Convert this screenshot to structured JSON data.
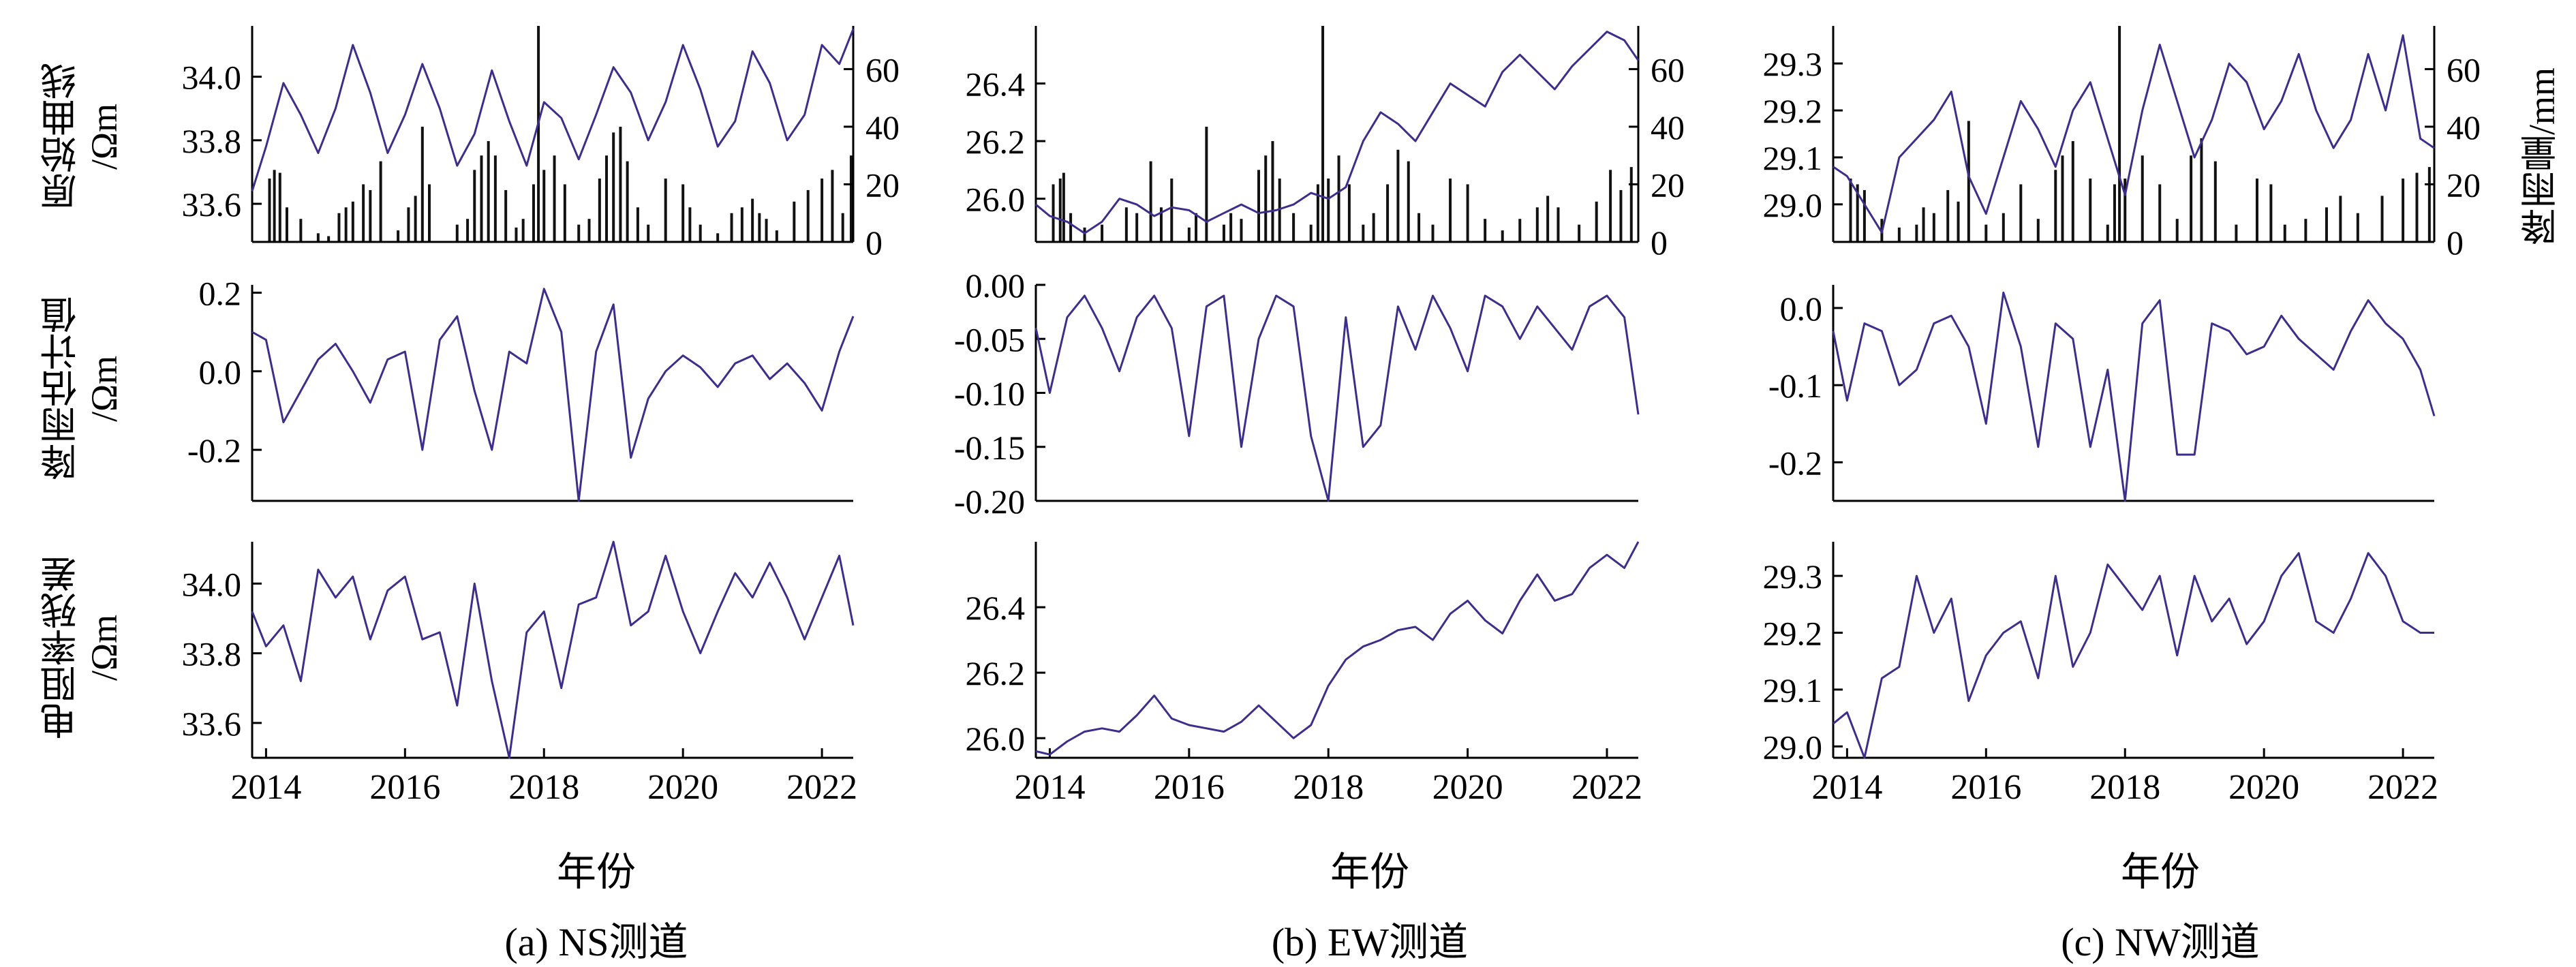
{
  "labels": {
    "row1_ylabel": "原始曲线",
    "row2_ylabel": "降雨估计值",
    "row3_ylabel": "电阻率残差",
    "unit": "/Ωm",
    "rain_axis_label": "降雨量/mm",
    "x_title": "年份"
  },
  "colors": {
    "line": "#3c2f8c",
    "bar": "#111111",
    "axis": "#000000"
  },
  "panels": [
    {
      "id": "ns",
      "caption": "(a) NS测道"
    },
    {
      "id": "ew",
      "caption": "(b) EW测道"
    },
    {
      "id": "nw",
      "caption": "(c) NW测道"
    }
  ],
  "chart_data": [
    {
      "type": "line",
      "panel": "ns",
      "row": "raw",
      "title": "",
      "ylabel": "原始曲线 /Ωm",
      "xlim": [
        2013.8,
        2022.45
      ],
      "ylim": [
        33.48,
        34.16
      ],
      "yticks": [
        33.6,
        33.8,
        34.0
      ],
      "xticks": [
        2014,
        2016,
        2018,
        2020,
        2022
      ],
      "x": [
        2013.8,
        2014.0,
        2014.25,
        2014.5,
        2014.75,
        2015.0,
        2015.25,
        2015.5,
        2015.75,
        2016.0,
        2016.25,
        2016.5,
        2016.75,
        2017.0,
        2017.25,
        2017.5,
        2017.75,
        2018.0,
        2018.25,
        2018.5,
        2018.75,
        2019.0,
        2019.25,
        2019.5,
        2019.75,
        2020.0,
        2020.25,
        2020.5,
        2020.75,
        2021.0,
        2021.25,
        2021.5,
        2021.75,
        2022.0,
        2022.25,
        2022.45
      ],
      "y": [
        33.64,
        33.78,
        33.98,
        33.88,
        33.76,
        33.9,
        34.1,
        33.95,
        33.76,
        33.88,
        34.04,
        33.9,
        33.72,
        33.82,
        34.02,
        33.86,
        33.72,
        33.92,
        33.87,
        33.74,
        33.88,
        34.03,
        33.95,
        33.8,
        33.92,
        34.1,
        33.96,
        33.78,
        33.86,
        34.08,
        33.98,
        33.8,
        33.88,
        34.1,
        34.04,
        34.15
      ],
      "rain_series": {
        "ylim": [
          0,
          75
        ],
        "yticks": [
          0,
          20,
          40,
          60
        ],
        "y2label": "降雨量/mm",
        "x": [
          2014.05,
          2014.12,
          2014.2,
          2014.3,
          2014.5,
          2014.75,
          2014.9,
          2015.05,
          2015.15,
          2015.25,
          2015.4,
          2015.5,
          2015.65,
          2015.9,
          2016.05,
          2016.15,
          2016.25,
          2016.35,
          2016.75,
          2016.9,
          2017.0,
          2017.1,
          2017.2,
          2017.3,
          2017.45,
          2017.6,
          2017.7,
          2017.85,
          2017.92,
          2018.0,
          2018.15,
          2018.3,
          2018.5,
          2018.65,
          2018.8,
          2018.9,
          2019.0,
          2019.1,
          2019.2,
          2019.35,
          2019.5,
          2019.75,
          2020.0,
          2020.1,
          2020.25,
          2020.5,
          2020.7,
          2020.85,
          2021.0,
          2021.1,
          2021.2,
          2021.35,
          2021.6,
          2021.8,
          2022.0,
          2022.15,
          2022.3,
          2022.42
        ],
        "values": [
          22,
          25,
          24,
          12,
          8,
          3,
          2,
          10,
          12,
          14,
          20,
          18,
          28,
          4,
          12,
          16,
          40,
          20,
          6,
          8,
          25,
          30,
          35,
          30,
          18,
          5,
          8,
          20,
          75,
          25,
          30,
          20,
          6,
          8,
          22,
          30,
          38,
          40,
          28,
          12,
          6,
          22,
          20,
          12,
          6,
          3,
          10,
          12,
          15,
          10,
          8,
          4,
          14,
          18,
          22,
          25,
          10,
          30
        ]
      }
    },
    {
      "type": "line",
      "panel": "ns",
      "row": "rain_estimate",
      "ylabel": "降雨估计值 /Ωm",
      "xlim": [
        2013.8,
        2022.45
      ],
      "ylim": [
        -0.33,
        0.22
      ],
      "yticks": [
        -0.2,
        0.0,
        0.2
      ],
      "x": [
        2013.8,
        2014.0,
        2014.25,
        2014.5,
        2014.75,
        2015.0,
        2015.25,
        2015.5,
        2015.75,
        2016.0,
        2016.25,
        2016.5,
        2016.75,
        2017.0,
        2017.25,
        2017.5,
        2017.75,
        2018.0,
        2018.25,
        2018.5,
        2018.75,
        2019.0,
        2019.25,
        2019.5,
        2019.75,
        2020.0,
        2020.25,
        2020.5,
        2020.75,
        2021.0,
        2021.25,
        2021.5,
        2021.75,
        2022.0,
        2022.25,
        2022.45
      ],
      "y": [
        0.1,
        0.08,
        -0.13,
        -0.05,
        0.03,
        0.07,
        0.0,
        -0.08,
        0.03,
        0.05,
        -0.2,
        0.08,
        0.14,
        -0.05,
        -0.2,
        0.05,
        0.02,
        0.21,
        0.1,
        -0.33,
        0.05,
        0.17,
        -0.22,
        -0.07,
        0.0,
        0.04,
        0.01,
        -0.04,
        0.02,
        0.04,
        -0.02,
        0.02,
        -0.03,
        -0.1,
        0.05,
        0.14
      ]
    },
    {
      "type": "line",
      "panel": "ns",
      "row": "residual",
      "ylabel": "电阻率残差 /Ωm",
      "xlim": [
        2013.8,
        2022.45
      ],
      "ylim": [
        33.5,
        34.12
      ],
      "yticks": [
        33.6,
        33.8,
        34.0
      ],
      "x": [
        2013.8,
        2014.0,
        2014.25,
        2014.5,
        2014.75,
        2015.0,
        2015.25,
        2015.5,
        2015.75,
        2016.0,
        2016.25,
        2016.5,
        2016.75,
        2017.0,
        2017.25,
        2017.5,
        2017.75,
        2018.0,
        2018.25,
        2018.5,
        2018.75,
        2019.0,
        2019.25,
        2019.5,
        2019.75,
        2020.0,
        2020.25,
        2020.5,
        2020.75,
        2021.0,
        2021.25,
        2021.5,
        2021.75,
        2022.0,
        2022.25,
        2022.45
      ],
      "y": [
        33.92,
        33.82,
        33.88,
        33.72,
        34.04,
        33.96,
        34.02,
        33.84,
        33.98,
        34.02,
        33.84,
        33.86,
        33.65,
        34.0,
        33.72,
        33.5,
        33.86,
        33.92,
        33.7,
        33.94,
        33.96,
        34.12,
        33.88,
        33.92,
        34.08,
        33.92,
        33.8,
        33.92,
        34.03,
        33.96,
        34.06,
        33.96,
        33.84,
        33.96,
        34.08,
        33.88
      ]
    },
    {
      "type": "line",
      "panel": "ew",
      "row": "raw",
      "ylabel": "原始曲线 /Ωm",
      "xlim": [
        2013.8,
        2022.45
      ],
      "ylim": [
        25.85,
        26.6
      ],
      "yticks": [
        26.0,
        26.2,
        26.4
      ],
      "xticks": [
        2014,
        2016,
        2018,
        2020,
        2022
      ],
      "x": [
        2013.8,
        2014.0,
        2014.25,
        2014.5,
        2014.75,
        2015.0,
        2015.25,
        2015.5,
        2015.75,
        2016.0,
        2016.25,
        2016.5,
        2016.75,
        2017.0,
        2017.25,
        2017.5,
        2017.75,
        2018.0,
        2018.25,
        2018.5,
        2018.75,
        2019.0,
        2019.25,
        2019.5,
        2019.75,
        2020.0,
        2020.25,
        2020.5,
        2020.75,
        2021.0,
        2021.25,
        2021.5,
        2021.75,
        2022.0,
        2022.25,
        2022.45
      ],
      "y": [
        25.98,
        25.94,
        25.92,
        25.88,
        25.92,
        26.0,
        25.98,
        25.94,
        25.97,
        25.96,
        25.92,
        25.95,
        25.98,
        25.95,
        25.96,
        25.98,
        26.02,
        26.0,
        26.04,
        26.2,
        26.3,
        26.26,
        26.2,
        26.3,
        26.4,
        26.36,
        26.32,
        26.44,
        26.5,
        26.44,
        26.38,
        26.46,
        26.52,
        26.58,
        26.55,
        26.48
      ],
      "rain_series": {
        "ylim": [
          0,
          75
        ],
        "yticks": [
          0,
          20,
          40,
          60
        ],
        "x": [
          2014.05,
          2014.15,
          2014.2,
          2014.3,
          2014.5,
          2014.75,
          2015.1,
          2015.25,
          2015.45,
          2015.6,
          2015.75,
          2016.0,
          2016.1,
          2016.25,
          2016.5,
          2016.6,
          2016.75,
          2017.0,
          2017.1,
          2017.2,
          2017.3,
          2017.5,
          2017.75,
          2017.85,
          2017.92,
          2018.0,
          2018.15,
          2018.3,
          2018.5,
          2018.65,
          2018.85,
          2019.0,
          2019.15,
          2019.3,
          2019.5,
          2019.75,
          2020.0,
          2020.25,
          2020.5,
          2020.75,
          2021.0,
          2021.15,
          2021.3,
          2021.6,
          2021.85,
          2022.05,
          2022.2,
          2022.35
        ],
        "values": [
          20,
          22,
          24,
          10,
          5,
          6,
          12,
          10,
          28,
          12,
          22,
          5,
          10,
          40,
          6,
          10,
          8,
          25,
          30,
          35,
          22,
          10,
          6,
          20,
          75,
          22,
          30,
          20,
          6,
          10,
          20,
          32,
          28,
          10,
          6,
          22,
          20,
          8,
          4,
          8,
          12,
          16,
          12,
          6,
          14,
          25,
          18,
          26
        ]
      }
    },
    {
      "type": "line",
      "panel": "ew",
      "row": "rain_estimate",
      "ylabel": "降雨估计值 /Ωm",
      "xlim": [
        2013.8,
        2022.45
      ],
      "ylim": [
        -0.2,
        0.0
      ],
      "yticks": [
        -0.2,
        -0.15,
        -0.1,
        -0.05,
        0.0
      ],
      "x": [
        2013.8,
        2014.0,
        2014.25,
        2014.5,
        2014.75,
        2015.0,
        2015.25,
        2015.5,
        2015.75,
        2016.0,
        2016.25,
        2016.5,
        2016.75,
        2017.0,
        2017.25,
        2017.5,
        2017.75,
        2018.0,
        2018.25,
        2018.5,
        2018.75,
        2019.0,
        2019.25,
        2019.5,
        2019.75,
        2020.0,
        2020.25,
        2020.5,
        2020.75,
        2021.0,
        2021.25,
        2021.5,
        2021.75,
        2022.0,
        2022.25,
        2022.45
      ],
      "y": [
        -0.04,
        -0.1,
        -0.03,
        -0.01,
        -0.04,
        -0.08,
        -0.03,
        -0.01,
        -0.04,
        -0.14,
        -0.02,
        -0.01,
        -0.15,
        -0.05,
        -0.01,
        -0.02,
        -0.14,
        -0.2,
        -0.03,
        -0.15,
        -0.13,
        -0.02,
        -0.06,
        -0.01,
        -0.04,
        -0.08,
        -0.01,
        -0.02,
        -0.05,
        -0.02,
        -0.04,
        -0.06,
        -0.02,
        -0.01,
        -0.03,
        -0.12
      ]
    },
    {
      "type": "line",
      "panel": "ew",
      "row": "residual",
      "ylabel": "电阻率残差 /Ωm",
      "xlim": [
        2013.8,
        2022.45
      ],
      "ylim": [
        25.94,
        26.6
      ],
      "yticks": [
        26.0,
        26.2,
        26.4
      ],
      "x": [
        2013.8,
        2014.0,
        2014.25,
        2014.5,
        2014.75,
        2015.0,
        2015.25,
        2015.5,
        2015.75,
        2016.0,
        2016.25,
        2016.5,
        2016.75,
        2017.0,
        2017.25,
        2017.5,
        2017.75,
        2018.0,
        2018.25,
        2018.5,
        2018.75,
        2019.0,
        2019.25,
        2019.5,
        2019.75,
        2020.0,
        2020.25,
        2020.5,
        2020.75,
        2021.0,
        2021.25,
        2021.5,
        2021.75,
        2022.0,
        2022.25,
        2022.45
      ],
      "y": [
        25.96,
        25.95,
        25.99,
        26.02,
        26.03,
        26.02,
        26.07,
        26.13,
        26.06,
        26.04,
        26.03,
        26.02,
        26.05,
        26.1,
        26.05,
        26.0,
        26.04,
        26.16,
        26.24,
        26.28,
        26.3,
        26.33,
        26.34,
        26.3,
        26.38,
        26.42,
        26.36,
        26.32,
        26.42,
        26.5,
        26.42,
        26.44,
        26.52,
        26.56,
        26.52,
        26.6
      ]
    },
    {
      "type": "line",
      "panel": "nw",
      "row": "raw",
      "ylabel": "原始曲线 /Ωm",
      "xlim": [
        2013.8,
        2022.45
      ],
      "ylim": [
        28.92,
        29.38
      ],
      "yticks": [
        29.0,
        29.1,
        29.2,
        29.3
      ],
      "xticks": [
        2014,
        2016,
        2018,
        2020,
        2022
      ],
      "x": [
        2013.8,
        2014.0,
        2014.25,
        2014.5,
        2014.75,
        2015.0,
        2015.25,
        2015.5,
        2015.75,
        2016.0,
        2016.25,
        2016.5,
        2016.75,
        2017.0,
        2017.25,
        2017.5,
        2017.75,
        2018.0,
        2018.25,
        2018.5,
        2018.75,
        2019.0,
        2019.25,
        2019.5,
        2019.75,
        2020.0,
        2020.25,
        2020.5,
        2020.75,
        2021.0,
        2021.25,
        2021.5,
        2021.75,
        2022.0,
        2022.25,
        2022.45
      ],
      "y": [
        29.08,
        29.06,
        29.0,
        28.94,
        29.1,
        29.14,
        29.18,
        29.24,
        29.06,
        28.98,
        29.1,
        29.22,
        29.16,
        29.08,
        29.2,
        29.26,
        29.14,
        29.02,
        29.2,
        29.34,
        29.22,
        29.1,
        29.18,
        29.3,
        29.26,
        29.16,
        29.22,
        29.32,
        29.2,
        29.12,
        29.18,
        29.32,
        29.2,
        29.36,
        29.14,
        29.12
      ],
      "rain_series": {
        "ylim": [
          0,
          75
        ],
        "yticks": [
          0,
          20,
          40,
          60
        ],
        "y2label": "降雨量/mm",
        "x": [
          2014.05,
          2014.15,
          2014.25,
          2014.5,
          2014.75,
          2015.0,
          2015.1,
          2015.25,
          2015.45,
          2015.6,
          2015.75,
          2016.0,
          2016.25,
          2016.5,
          2016.75,
          2017.0,
          2017.1,
          2017.25,
          2017.5,
          2017.75,
          2017.85,
          2017.92,
          2018.0,
          2018.25,
          2018.5,
          2018.75,
          2018.95,
          2019.1,
          2019.3,
          2019.6,
          2019.9,
          2020.1,
          2020.3,
          2020.6,
          2020.9,
          2021.1,
          2021.35,
          2021.7,
          2022.0,
          2022.2,
          2022.38
        ],
        "values": [
          22,
          20,
          18,
          8,
          5,
          6,
          12,
          10,
          18,
          14,
          42,
          6,
          10,
          20,
          8,
          25,
          30,
          35,
          22,
          6,
          20,
          75,
          22,
          30,
          20,
          8,
          30,
          36,
          28,
          6,
          22,
          20,
          6,
          8,
          12,
          16,
          10,
          16,
          22,
          24,
          26
        ]
      }
    },
    {
      "type": "line",
      "panel": "nw",
      "row": "rain_estimate",
      "ylabel": "降雨估计值 /Ωm",
      "xlim": [
        2013.8,
        2022.45
      ],
      "ylim": [
        -0.25,
        0.03
      ],
      "yticks": [
        -0.2,
        -0.1,
        0.0
      ],
      "x": [
        2013.8,
        2014.0,
        2014.25,
        2014.5,
        2014.75,
        2015.0,
        2015.25,
        2015.5,
        2015.75,
        2016.0,
        2016.25,
        2016.5,
        2016.75,
        2017.0,
        2017.25,
        2017.5,
        2017.75,
        2018.0,
        2018.25,
        2018.5,
        2018.75,
        2019.0,
        2019.25,
        2019.5,
        2019.75,
        2020.0,
        2020.25,
        2020.5,
        2020.75,
        2021.0,
        2021.25,
        2021.5,
        2021.75,
        2022.0,
        2022.25,
        2022.45
      ],
      "y": [
        -0.03,
        -0.12,
        -0.02,
        -0.03,
        -0.1,
        -0.08,
        -0.02,
        -0.01,
        -0.05,
        -0.15,
        0.02,
        -0.05,
        -0.18,
        -0.02,
        -0.04,
        -0.18,
        -0.08,
        -0.25,
        -0.02,
        0.01,
        -0.19,
        -0.19,
        -0.02,
        -0.03,
        -0.06,
        -0.05,
        -0.01,
        -0.04,
        -0.06,
        -0.08,
        -0.03,
        0.01,
        -0.02,
        -0.04,
        -0.08,
        -0.14
      ]
    },
    {
      "type": "line",
      "panel": "nw",
      "row": "residual",
      "ylabel": "电阻率残差 /Ωm",
      "xlim": [
        2013.8,
        2022.45
      ],
      "ylim": [
        28.98,
        29.36
      ],
      "yticks": [
        29.0,
        29.1,
        29.2,
        29.3
      ],
      "x": [
        2013.8,
        2014.0,
        2014.25,
        2014.5,
        2014.75,
        2015.0,
        2015.25,
        2015.5,
        2015.75,
        2016.0,
        2016.25,
        2016.5,
        2016.75,
        2017.0,
        2017.25,
        2017.5,
        2017.75,
        2018.0,
        2018.25,
        2018.5,
        2018.75,
        2019.0,
        2019.25,
        2019.5,
        2019.75,
        2020.0,
        2020.25,
        2020.5,
        2020.75,
        2021.0,
        2021.25,
        2021.5,
        2021.75,
        2022.0,
        2022.25,
        2022.45
      ],
      "y": [
        29.04,
        29.06,
        28.98,
        29.12,
        29.14,
        29.3,
        29.2,
        29.26,
        29.08,
        29.16,
        29.2,
        29.22,
        29.12,
        29.3,
        29.14,
        29.2,
        29.32,
        29.28,
        29.24,
        29.3,
        29.16,
        29.3,
        29.22,
        29.26,
        29.18,
        29.22,
        29.3,
        29.34,
        29.22,
        29.2,
        29.26,
        29.34,
        29.3,
        29.22,
        29.2,
        29.2
      ]
    }
  ]
}
